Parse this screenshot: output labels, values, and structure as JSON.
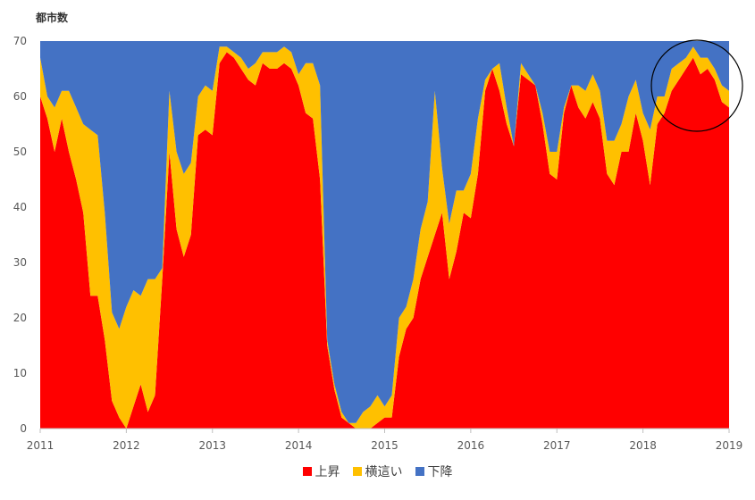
{
  "chart_data": {
    "type": "area",
    "stacked": true,
    "ylabel": "都市数",
    "ylim": [
      0,
      70
    ],
    "yticks": [
      "0",
      "10",
      "20",
      "30",
      "40",
      "50",
      "60",
      "70"
    ],
    "xlim": [
      2011,
      2019
    ],
    "xticks": [
      "2011",
      "2012",
      "2013",
      "2014",
      "2015",
      "2016",
      "2017",
      "2018",
      "2019"
    ],
    "legend_position": "bottom",
    "grid": false,
    "x": [
      2011.0,
      2011.083,
      2011.167,
      2011.25,
      2011.333,
      2011.417,
      2011.5,
      2011.583,
      2011.667,
      2011.75,
      2011.833,
      2011.917,
      2012.0,
      2012.083,
      2012.167,
      2012.25,
      2012.333,
      2012.417,
      2012.5,
      2012.583,
      2012.667,
      2012.75,
      2012.833,
      2012.917,
      2013.0,
      2013.083,
      2013.167,
      2013.25,
      2013.333,
      2013.417,
      2013.5,
      2013.583,
      2013.667,
      2013.75,
      2013.833,
      2013.917,
      2014.0,
      2014.083,
      2014.167,
      2014.25,
      2014.333,
      2014.417,
      2014.5,
      2014.583,
      2014.667,
      2014.75,
      2014.833,
      2014.917,
      2015.0,
      2015.083,
      2015.167,
      2015.25,
      2015.333,
      2015.417,
      2015.5,
      2015.583,
      2015.667,
      2015.75,
      2015.833,
      2015.917,
      2016.0,
      2016.083,
      2016.167,
      2016.25,
      2016.333,
      2016.417,
      2016.5,
      2016.583,
      2016.667,
      2016.75,
      2016.833,
      2016.917,
      2017.0,
      2017.083,
      2017.167,
      2017.25,
      2017.333,
      2017.417,
      2017.5,
      2017.583,
      2017.667,
      2017.75,
      2017.833,
      2017.917,
      2018.0,
      2018.083,
      2018.167,
      2018.25,
      2018.333,
      2018.417,
      2018.5,
      2018.583,
      2018.667,
      2018.75,
      2018.833,
      2018.917,
      2019.0
    ],
    "series": [
      {
        "name": "上昇",
        "color": "#ff0000",
        "values": [
          60,
          56,
          50,
          56,
          50,
          45,
          39,
          24,
          24,
          16,
          5,
          2,
          0,
          4,
          8,
          3,
          6,
          27,
          50,
          36,
          31,
          35,
          53,
          54,
          53,
          66,
          68,
          67,
          65,
          63,
          62,
          66,
          65,
          65,
          66,
          65,
          62,
          57,
          56,
          45,
          15,
          7,
          2,
          1,
          0,
          0,
          0,
          1,
          2,
          2,
          13,
          18,
          20,
          27,
          31,
          35,
          39,
          27,
          32,
          39,
          38,
          46,
          61,
          65,
          61,
          55,
          51,
          64,
          63,
          62,
          55,
          46,
          45,
          57,
          62,
          58,
          56,
          59,
          56,
          46,
          44,
          50,
          50,
          57,
          52,
          44,
          55,
          57,
          61,
          63,
          65,
          67,
          64,
          65,
          63,
          59,
          58
        ]
      },
      {
        "name": "横這い",
        "color": "#ffc000",
        "values": [
          7,
          4,
          8,
          5,
          11,
          13,
          16,
          30,
          29,
          23,
          16,
          16,
          22,
          21,
          16,
          24,
          21,
          2,
          11,
          14,
          15,
          13,
          7,
          8,
          8,
          3,
          1,
          1,
          2,
          2,
          4,
          2,
          3,
          3,
          3,
          3,
          2,
          9,
          10,
          17,
          1,
          1,
          1,
          0,
          1,
          3,
          4,
          5,
          2,
          4,
          7,
          4,
          7,
          9,
          10,
          26,
          8,
          10,
          11,
          4,
          8,
          10,
          2,
          0,
          5,
          3,
          0,
          2,
          1,
          0,
          2,
          4,
          5,
          1,
          0,
          4,
          5,
          5,
          5,
          6,
          8,
          5,
          10,
          6,
          5,
          10,
          5,
          3,
          4,
          3,
          2,
          2,
          3,
          2,
          2,
          3,
          3
        ]
      },
      {
        "name": "下降",
        "color": "#4472c4",
        "values": [
          3,
          10,
          12,
          9,
          9,
          12,
          15,
          16,
          17,
          31,
          49,
          52,
          48,
          45,
          46,
          43,
          43,
          41,
          9,
          20,
          24,
          22,
          10,
          8,
          9,
          1,
          1,
          2,
          3,
          5,
          4,
          2,
          2,
          2,
          1,
          2,
          6,
          4,
          4,
          8,
          54,
          62,
          67,
          69,
          69,
          67,
          66,
          64,
          66,
          64,
          50,
          48,
          43,
          34,
          29,
          9,
          23,
          33,
          27,
          27,
          24,
          14,
          7,
          5,
          4,
          12,
          19,
          4,
          6,
          8,
          13,
          20,
          20,
          12,
          8,
          8,
          9,
          6,
          9,
          18,
          18,
          15,
          10,
          7,
          13,
          16,
          10,
          10,
          5,
          4,
          3,
          1,
          3,
          3,
          5,
          8,
          9
        ]
      }
    ]
  },
  "legend": [
    {
      "label": "上昇",
      "color": "#ff0000"
    },
    {
      "label": "横這い",
      "color": "#ffc000"
    },
    {
      "label": "下降",
      "color": "#4472c4"
    }
  ]
}
